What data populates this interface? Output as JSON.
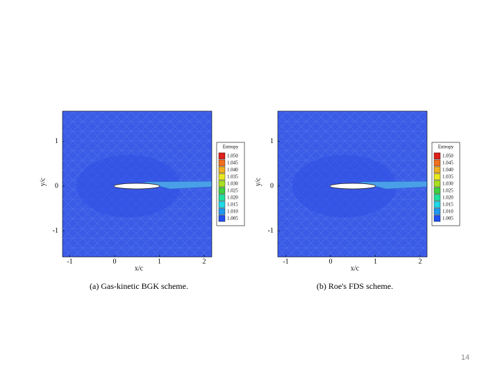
{
  "panels": [
    {
      "x_ticks": [
        -1,
        0,
        1,
        2
      ],
      "y_ticks": [
        1,
        0,
        -1
      ],
      "x_label": "x/c",
      "y_label": "y/c",
      "legend": {
        "title": "Entropy",
        "levels": [
          "1.050",
          "1.045",
          "1.040",
          "1.035",
          "1.030",
          "1.025",
          "1.020",
          "1.015",
          "1.010",
          "1.005"
        ]
      },
      "caption": "(a) Gas-kinetic BGK scheme."
    },
    {
      "x_ticks": [
        -1,
        0,
        1,
        2
      ],
      "y_ticks": [
        1,
        0,
        -1
      ],
      "x_label": "x/c",
      "y_label": "y/c",
      "legend": {
        "title": "Entropy",
        "levels": [
          "1.050",
          "1.045",
          "1.040",
          "1.035",
          "1.030",
          "1.025",
          "1.020",
          "1.015",
          "1.010",
          "1.005"
        ]
      },
      "caption": "(b) Roe's FDS scheme."
    }
  ],
  "legend_colors": [
    "#e0201b",
    "#f07020",
    "#f0b020",
    "#e8e820",
    "#a8e020",
    "#40d040",
    "#20e0a0",
    "#20d8e8",
    "#2098f0",
    "#2050f0"
  ],
  "page_number": "14"
}
